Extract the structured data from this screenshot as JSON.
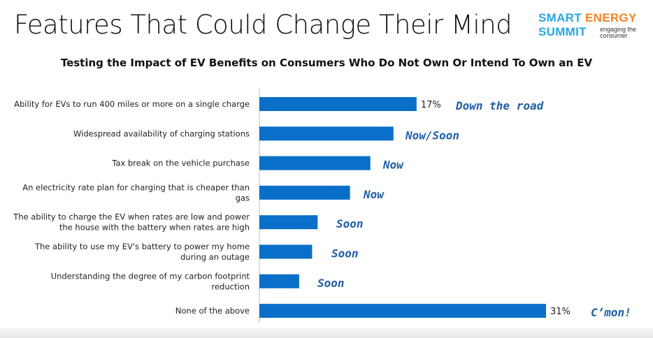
{
  "title": "Features That Could Change Their Mind",
  "logo": {
    "word1": "SMART",
    "word2": "ENERGY",
    "word3": "SUMMIT",
    "tagline": "engaging the consumer"
  },
  "colors": {
    "bar": "#0a6fc9",
    "annotation": "#1f5fa6",
    "logo_blue": "#2aa7de",
    "logo_orange": "#f58220"
  },
  "chart_data": {
    "type": "bar",
    "orientation": "horizontal",
    "title": "Testing the Impact of EV Benefits on Consumers Who Do Not Own Or Intend To Own an EV",
    "xlim": [
      0,
      31
    ],
    "categories": [
      [
        "Ability for EVs to run 400 miles or more on a single charge"
      ],
      [
        "Widespread availability of charging stations"
      ],
      [
        "Tax break on the vehicle purchase"
      ],
      [
        "An electricity rate plan for charging that is cheaper than",
        "gas"
      ],
      [
        "The ability to charge the EV when rates are low and power",
        "the house with the battery when rates are high"
      ],
      [
        "The ability to use my EV's battery to power my home",
        "during an outage"
      ],
      [
        "Understanding the degree of my carbon footprint",
        "reduction"
      ],
      [
        "None of the above"
      ]
    ],
    "values": [
      17,
      14.5,
      12,
      9.8,
      6.3,
      5.7,
      4.3,
      31
    ],
    "data_labels": [
      "17%",
      "",
      "",
      "",
      "",
      "",
      "",
      "31%"
    ],
    "annotations": [
      "Down the road",
      "Now/Soon",
      "Now",
      "Now",
      "Soon",
      "Soon",
      "Soon",
      "C’mon!"
    ],
    "grid": false,
    "legend": "none"
  }
}
